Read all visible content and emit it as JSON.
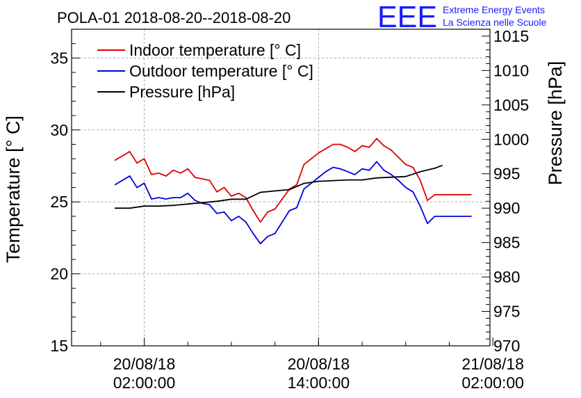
{
  "chart_data": {
    "type": "line",
    "title": "POLA-01 2018-08-20--2018-08-20",
    "ylabel_left": "Temperature [° C]",
    "ylabel_right": "Pressure [hPa]",
    "xlabel": "",
    "ylim_left": [
      15,
      37
    ],
    "ylim_right": [
      970,
      1016
    ],
    "xlim_hours": [
      -3,
      25.8
    ],
    "left_ticks": [
      "15",
      "20",
      "25",
      "30",
      "35"
    ],
    "right_ticks": [
      "970",
      "975",
      "980",
      "985",
      "990",
      "995",
      "1000",
      "1005",
      "1010",
      "1015"
    ],
    "x_ticks": [
      {
        "hour": 2,
        "line1": "20/08/18",
        "line2": "02:00:00"
      },
      {
        "hour": 14,
        "line1": "20/08/18",
        "line2": "14:00:00"
      },
      {
        "hour": 26,
        "line1": "21/08/18",
        "line2": "02:00:00"
      }
    ],
    "grid": true,
    "legend_position": "top-left",
    "series": [
      {
        "name": "Indoor temperature [° C]",
        "color": "#dd0000",
        "axis": "left",
        "x": [
          0,
          0.5,
          1,
          1.5,
          2,
          2.5,
          3,
          3.5,
          4,
          4.5,
          5,
          5.5,
          6,
          6.5,
          7,
          7.5,
          8,
          8.5,
          9,
          9.5,
          10,
          10.5,
          11,
          11.5,
          12,
          12.5,
          13,
          13.5,
          14,
          14.5,
          15,
          15.5,
          16,
          16.5,
          17,
          17.5,
          18,
          18.5,
          19,
          19.5,
          20,
          20.5,
          21,
          21.5,
          22,
          22.5,
          23,
          23.5,
          24,
          24.5
        ],
        "values": [
          27.9,
          28.2,
          28.5,
          27.7,
          28.0,
          26.9,
          27.0,
          26.8,
          27.2,
          27.0,
          27.3,
          26.7,
          26.6,
          26.5,
          25.7,
          26.0,
          25.4,
          25.6,
          25.3,
          24.4,
          23.6,
          24.3,
          24.5,
          25.2,
          25.9,
          26.2,
          27.6,
          28.0,
          28.4,
          28.7,
          29.0,
          29.0,
          28.8,
          28.5,
          28.9,
          28.8,
          29.4,
          28.9,
          28.6,
          28.1,
          27.6,
          27.4,
          26.5,
          25.1,
          25.5,
          25.5,
          25.5,
          25.5,
          25.5,
          25.5
        ]
      },
      {
        "name": "Outdoor temperature [° C]",
        "color": "#0000dd",
        "axis": "left",
        "x": [
          0,
          0.5,
          1,
          1.5,
          2,
          2.5,
          3,
          3.5,
          4,
          4.5,
          5,
          5.5,
          6,
          6.5,
          7,
          7.5,
          8,
          8.5,
          9,
          9.5,
          10,
          10.5,
          11,
          11.5,
          12,
          12.5,
          13,
          13.5,
          14,
          14.5,
          15,
          15.5,
          16,
          16.5,
          17,
          17.5,
          18,
          18.5,
          19,
          19.5,
          20,
          20.5,
          21,
          21.5,
          22,
          22.5,
          23,
          23.5,
          24,
          24.5
        ],
        "values": [
          26.2,
          26.5,
          26.8,
          26.0,
          26.3,
          25.2,
          25.3,
          25.2,
          25.3,
          25.3,
          25.6,
          25.1,
          24.9,
          24.8,
          24.2,
          24.3,
          23.7,
          24.0,
          23.6,
          22.8,
          22.1,
          22.6,
          22.8,
          23.6,
          24.4,
          24.6,
          25.9,
          26.3,
          26.7,
          27.1,
          27.4,
          27.3,
          27.1,
          26.9,
          27.3,
          27.2,
          27.8,
          27.2,
          26.9,
          26.5,
          26.0,
          25.7,
          24.7,
          23.5,
          24.0,
          24.0,
          24.0,
          24.0,
          24.0,
          24.0
        ]
      },
      {
        "name": "Pressure [hPa]",
        "color": "#000000",
        "axis": "right",
        "x": [
          0,
          1,
          2,
          3,
          4,
          5,
          6,
          7,
          8,
          9,
          10,
          11,
          12,
          13,
          14,
          15,
          16,
          17,
          18,
          19,
          20,
          21,
          22,
          22.5
        ],
        "values": [
          990.0,
          990.0,
          990.3,
          990.3,
          990.4,
          990.6,
          990.8,
          991.0,
          991.3,
          991.3,
          992.3,
          992.5,
          992.7,
          993.6,
          993.9,
          994.0,
          994.1,
          994.1,
          994.4,
          994.5,
          994.6,
          995.3,
          995.8,
          996.2
        ]
      }
    ]
  },
  "logo": {
    "mark": "EEE",
    "line1": "Extreme Energy Events",
    "line2": "La Scienza nelle Scuole",
    "color": "#1a1aff"
  }
}
